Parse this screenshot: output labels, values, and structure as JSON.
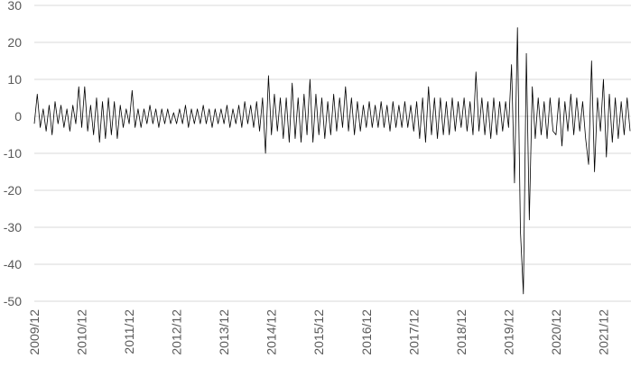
{
  "chart_data": {
    "type": "line",
    "color": "#000000",
    "grid": true,
    "ylim": [
      -50,
      30
    ],
    "yticks": [
      -50,
      -40,
      -30,
      -20,
      -10,
      0,
      10,
      20,
      30
    ],
    "categories": [
      "2009/12",
      null,
      null,
      null,
      null,
      null,
      null,
      null,
      null,
      null,
      null,
      null,
      null,
      null,
      null,
      null,
      "2010/12",
      null,
      null,
      null,
      null,
      null,
      null,
      null,
      null,
      null,
      null,
      null,
      null,
      null,
      null,
      null,
      "2011/12",
      null,
      null,
      null,
      null,
      null,
      null,
      null,
      null,
      null,
      null,
      null,
      null,
      null,
      null,
      null,
      "2012/12",
      null,
      null,
      null,
      null,
      null,
      null,
      null,
      null,
      null,
      null,
      null,
      null,
      null,
      null,
      null,
      "2013/12",
      null,
      null,
      null,
      null,
      null,
      null,
      null,
      null,
      null,
      null,
      null,
      null,
      null,
      null,
      null,
      "2014/12",
      null,
      null,
      null,
      null,
      null,
      null,
      null,
      null,
      null,
      null,
      null,
      null,
      null,
      null,
      null,
      "2015/12",
      null,
      null,
      null,
      null,
      null,
      null,
      null,
      null,
      null,
      null,
      null,
      null,
      null,
      null,
      null,
      "2016/12",
      null,
      null,
      null,
      null,
      null,
      null,
      null,
      null,
      null,
      null,
      null,
      null,
      null,
      null,
      null,
      "2017/12",
      null,
      null,
      null,
      null,
      null,
      null,
      null,
      null,
      null,
      null,
      null,
      null,
      null,
      null,
      null,
      "2018/12",
      null,
      null,
      null,
      null,
      null,
      null,
      null,
      null,
      null,
      null,
      null,
      null,
      null,
      null,
      null,
      "2019/12",
      null,
      null,
      null,
      null,
      null,
      null,
      null,
      null,
      null,
      null,
      null,
      null,
      null,
      null,
      null,
      "2020/12",
      null,
      null,
      null,
      null,
      null,
      null,
      null,
      null,
      null,
      null,
      null,
      null,
      null,
      null,
      null,
      "2021/12",
      null,
      null,
      null,
      null,
      null,
      null,
      null,
      null,
      null
    ],
    "values": [
      -2,
      6,
      -3,
      2,
      -4,
      3,
      -5,
      4,
      -2,
      3,
      -3,
      2,
      -4,
      3,
      -2,
      8,
      -3,
      8,
      -4,
      3,
      -5,
      5,
      -7,
      4,
      -6,
      5,
      -5,
      4,
      -6,
      3,
      -3,
      2,
      -2,
      7,
      -3,
      2,
      -3,
      2,
      -2,
      3,
      -2,
      2,
      -3,
      2,
      -2,
      2,
      -2,
      1,
      -2,
      2,
      -2,
      3,
      -3,
      2,
      -2,
      2,
      -2,
      3,
      -2,
      2,
      -3,
      2,
      -2,
      2,
      -2,
      3,
      -3,
      2,
      -2,
      3,
      -3,
      4,
      -2,
      3,
      -3,
      4,
      -4,
      5,
      -10,
      11,
      -5,
      6,
      -4,
      5,
      -6,
      5,
      -7,
      9,
      -6,
      5,
      -7,
      6,
      -5,
      10,
      -7,
      6,
      -5,
      5,
      -6,
      4,
      -5,
      6,
      -4,
      5,
      -3,
      8,
      -4,
      5,
      -5,
      4,
      -4,
      3,
      -3,
      4,
      -3,
      3,
      -3,
      4,
      -3,
      3,
      -4,
      4,
      -3,
      3,
      -3,
      4,
      -3,
      3,
      -4,
      4,
      -6,
      5,
      -7,
      8,
      -5,
      5,
      -6,
      5,
      -5,
      4,
      -5,
      5,
      -4,
      4,
      -3,
      5,
      -4,
      4,
      -5,
      12,
      -4,
      5,
      -5,
      4,
      -6,
      5,
      -5,
      4,
      -4,
      4,
      -3,
      14,
      -18,
      24,
      -31,
      -48,
      17,
      -28,
      8,
      -6,
      5,
      -5,
      4,
      -6,
      5,
      -4,
      -5,
      5,
      -8,
      4,
      -4,
      6,
      -5,
      5,
      -4,
      4,
      -6,
      -13,
      15,
      -15,
      5,
      -4,
      10,
      -11,
      6,
      -7,
      5,
      -6,
      4,
      -5,
      5,
      -4
    ]
  }
}
